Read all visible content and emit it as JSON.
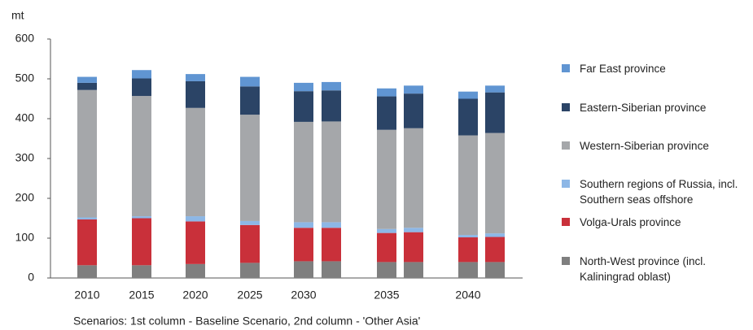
{
  "chart_data": {
    "type": "stacked_bar",
    "y_label": "mt",
    "note": "Scenarios: 1st column - Baseline Scenario, 2nd column - 'Other Asia'",
    "categories": [
      "2010",
      "2015",
      "2020",
      "2025",
      "2030",
      null,
      "2035",
      null,
      "2040",
      null
    ],
    "ylim": [
      0,
      600
    ],
    "yticks": [
      0,
      100,
      200,
      300,
      400,
      500,
      600
    ],
    "grid": false,
    "legend": "right",
    "series": [
      {
        "name": "North-West province (incl. Kaliningrad oblast)",
        "color": "#7f7f7f",
        "values": [
          32,
          32,
          35,
          38,
          42,
          42,
          40,
          40,
          40,
          40
        ]
      },
      {
        "name": "Volga-Urals province",
        "color": "#c9303a",
        "values": [
          115,
          118,
          107,
          95,
          84,
          84,
          73,
          75,
          62,
          63
        ]
      },
      {
        "name": "Southern regions of Russia, incl. Southern seas offshore",
        "color": "#8db7e6",
        "values": [
          5,
          5,
          13,
          10,
          14,
          14,
          10,
          11,
          6,
          9
        ]
      },
      {
        "name": "Western-Siberian province",
        "color": "#a5a7aa",
        "values": [
          320,
          302,
          272,
          267,
          252,
          253,
          249,
          250,
          250,
          252
        ]
      },
      {
        "name": "Eastern-Siberian province",
        "color": "#2b4466",
        "values": [
          18,
          44,
          67,
          71,
          77,
          78,
          84,
          87,
          92,
          102
        ]
      },
      {
        "name": "Far East province",
        "color": "#6095d2",
        "values": [
          15,
          21,
          18,
          24,
          21,
          21,
          20,
          20,
          18,
          17
        ]
      }
    ]
  }
}
